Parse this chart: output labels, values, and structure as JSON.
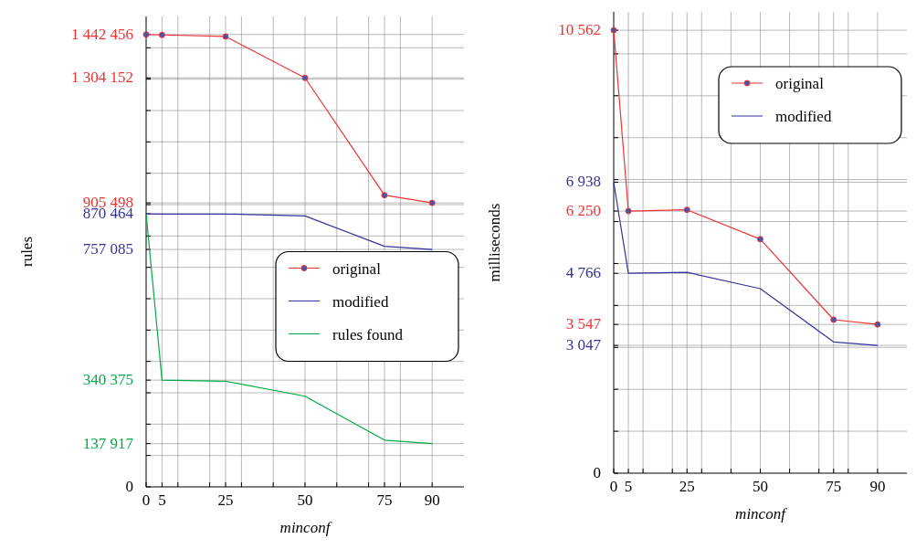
{
  "chart_data": [
    {
      "type": "line",
      "xlabel": "minconf",
      "ylabel": "rules",
      "x": [
        0,
        5,
        25,
        50,
        75,
        90
      ],
      "xlim": [
        0,
        100
      ],
      "xticks": [
        0,
        5,
        {
          "value": 10,
          "label": null
        },
        {
          "value": 20,
          "label": null
        },
        25,
        {
          "value": 30,
          "label": null
        },
        {
          "value": 40,
          "label": null
        },
        50,
        {
          "value": 60,
          "label": null
        },
        {
          "value": 70,
          "label": null
        },
        75,
        {
          "value": 80,
          "label": null
        },
        90
      ],
      "ylim": [
        0,
        1500000
      ],
      "yticks": [
        {
          "value": 0,
          "label": "0"
        },
        {
          "value": 100000,
          "label": null
        },
        {
          "value": 137917,
          "label": "137 917"
        },
        {
          "value": 200000,
          "label": null
        },
        {
          "value": 300000,
          "label": null
        },
        {
          "value": 340375,
          "label": "340 375"
        },
        {
          "value": 400000,
          "label": null
        },
        {
          "value": 500000,
          "label": null
        },
        {
          "value": 600000,
          "label": null
        },
        {
          "value": 700000,
          "label": null
        },
        {
          "value": 757085,
          "label": "757 085"
        },
        {
          "value": 800000,
          "label": null
        },
        {
          "value": 870464,
          "label": "870 464"
        },
        {
          "value": 900000,
          "label": null
        },
        {
          "value": 905498,
          "label": "905 498"
        },
        {
          "value": 1000000,
          "label": null
        },
        {
          "value": 1100000,
          "label": null
        },
        {
          "value": 1200000,
          "label": null
        },
        {
          "value": 1300000,
          "label": null
        },
        {
          "value": 1304152,
          "label": "1 304 152"
        },
        {
          "value": 1400000,
          "label": null
        },
        {
          "value": 1442456,
          "label": "1 442 456"
        }
      ],
      "grid": true,
      "legend": "right",
      "series": [
        {
          "name": "original",
          "color": "#ee3333",
          "marker": "circle",
          "values": [
            1442456,
            1441000,
            1436000,
            1304152,
            930000,
            905498
          ]
        },
        {
          "name": "modified",
          "color": "#333399",
          "marker": "none",
          "values": [
            870464,
            870000,
            870000,
            864000,
            767000,
            757085
          ]
        },
        {
          "name": "rules found",
          "color": "#00aa44",
          "marker": "none",
          "values": [
            870464,
            340375,
            337000,
            289000,
            149000,
            137917
          ]
        }
      ]
    },
    {
      "type": "line",
      "xlabel": "minconf",
      "ylabel": "milliseconds",
      "x": [
        0,
        5,
        25,
        50,
        75,
        90
      ],
      "xlim": [
        0,
        100
      ],
      "xticks": [
        0,
        5,
        {
          "value": 10,
          "label": null
        },
        {
          "value": 20,
          "label": null
        },
        25,
        {
          "value": 30,
          "label": null
        },
        {
          "value": 40,
          "label": null
        },
        50,
        {
          "value": 60,
          "label": null
        },
        {
          "value": 70,
          "label": null
        },
        75,
        {
          "value": 80,
          "label": null
        },
        90
      ],
      "ylim": [
        0,
        11000
      ],
      "yticks": [
        {
          "value": 0,
          "label": "0"
        },
        {
          "value": 1000,
          "label": null
        },
        {
          "value": 2000,
          "label": null
        },
        {
          "value": 3000,
          "label": null
        },
        {
          "value": 3047,
          "label": "3 047"
        },
        {
          "value": 3547,
          "label": "3 547"
        },
        {
          "value": 4000,
          "label": null
        },
        {
          "value": 4766,
          "label": "4 766"
        },
        {
          "value": 5000,
          "label": null
        },
        {
          "value": 6000,
          "label": null
        },
        {
          "value": 6250,
          "label": "6 250"
        },
        {
          "value": 6938,
          "label": "6 938"
        },
        {
          "value": 7000,
          "label": null
        },
        {
          "value": 8000,
          "label": null
        },
        {
          "value": 9000,
          "label": null
        },
        {
          "value": 10000,
          "label": null
        },
        {
          "value": 10562,
          "label": "10 562"
        }
      ],
      "grid": true,
      "legend": "top right",
      "series": [
        {
          "name": "original",
          "color": "#ee3333",
          "marker": "circle",
          "values": [
            10562,
            6250,
            6280,
            5580,
            3660,
            3547
          ]
        },
        {
          "name": "modified",
          "color": "#333399",
          "marker": "none",
          "values": [
            6938,
            4766,
            4790,
            4400,
            3130,
            3047
          ]
        }
      ]
    }
  ]
}
